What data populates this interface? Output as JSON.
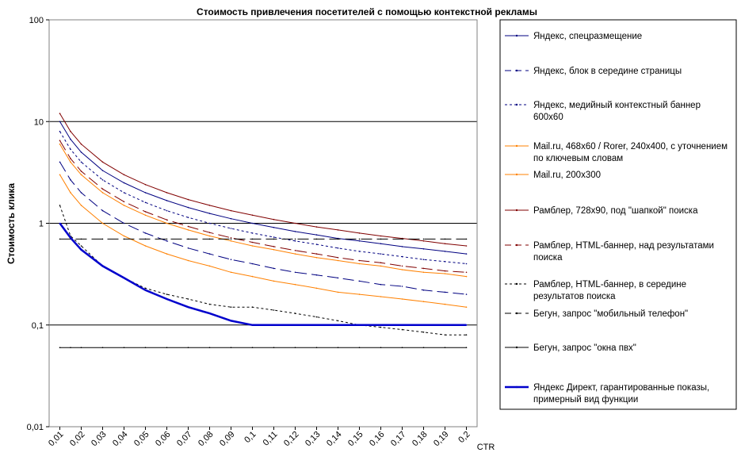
{
  "chart_data": {
    "type": "line",
    "title": "Стоимость привлечения посетителей с помощью контекстной рекламы",
    "xlabel": "CTR",
    "ylabel": "Стоимость клика",
    "y_scale": "log",
    "ylim": [
      0.01,
      100
    ],
    "xlim": [
      0.005,
      0.205
    ],
    "y_ticks": [
      {
        "value": 100,
        "label": "100"
      },
      {
        "value": 10,
        "label": "10"
      },
      {
        "value": 1,
        "label": "1"
      },
      {
        "value": 0.1,
        "label": "0,1"
      },
      {
        "value": 0.01,
        "label": "0,01"
      }
    ],
    "x_ticks": [
      {
        "value": 0.01,
        "label": "0,01"
      },
      {
        "value": 0.02,
        "label": "0,02"
      },
      {
        "value": 0.03,
        "label": "0,03"
      },
      {
        "value": 0.04,
        "label": "0,04"
      },
      {
        "value": 0.05,
        "label": "0,05"
      },
      {
        "value": 0.06,
        "label": "0,06"
      },
      {
        "value": 0.07,
        "label": "0,07"
      },
      {
        "value": 0.08,
        "label": "0,08"
      },
      {
        "value": 0.09,
        "label": "0,09"
      },
      {
        "value": 0.1,
        "label": "0,1"
      },
      {
        "value": 0.11,
        "label": "0,11"
      },
      {
        "value": 0.12,
        "label": "0,12"
      },
      {
        "value": 0.13,
        "label": "0,13"
      },
      {
        "value": 0.14,
        "label": "0,14"
      },
      {
        "value": 0.15,
        "label": "0,15"
      },
      {
        "value": 0.16,
        "label": "0,16"
      },
      {
        "value": 0.17,
        "label": "0,17"
      },
      {
        "value": 0.18,
        "label": "0,18"
      },
      {
        "value": 0.19,
        "label": "0,19"
      },
      {
        "value": 0.2,
        "label": "0,2"
      }
    ],
    "gridlines": "horizontal major",
    "legend_position": "right",
    "x": [
      0.01,
      0.015,
      0.02,
      0.03,
      0.04,
      0.05,
      0.06,
      0.07,
      0.08,
      0.09,
      0.1,
      0.11,
      0.12,
      0.13,
      0.14,
      0.15,
      0.16,
      0.17,
      0.18,
      0.19,
      0.2
    ],
    "series": [
      {
        "name": "Яндекс, спецразмещение",
        "color": "#000080",
        "dash": "solid",
        "width": 1,
        "values": [
          10,
          6.7,
          5,
          3.3,
          2.5,
          2,
          1.67,
          1.43,
          1.25,
          1.11,
          1.0,
          0.91,
          0.83,
          0.77,
          0.71,
          0.67,
          0.63,
          0.59,
          0.56,
          0.53,
          0.5
        ]
      },
      {
        "name": "Яндекс, блок в середине страницы",
        "color": "#000080",
        "dash": "long",
        "width": 1,
        "values": [
          4,
          2.67,
          2,
          1.33,
          1.0,
          0.8,
          0.67,
          0.57,
          0.5,
          0.44,
          0.4,
          0.36,
          0.33,
          0.31,
          0.29,
          0.27,
          0.25,
          0.24,
          0.22,
          0.21,
          0.2
        ]
      },
      {
        "name": "Яндекс, медийный контекстный баннер 600x60",
        "color": "#000080",
        "dash": "short",
        "width": 1,
        "values": [
          8,
          5.33,
          4,
          2.67,
          2.0,
          1.6,
          1.33,
          1.14,
          1.0,
          0.89,
          0.8,
          0.73,
          0.67,
          0.62,
          0.57,
          0.53,
          0.5,
          0.47,
          0.44,
          0.42,
          0.4
        ]
      },
      {
        "name": "Mail.ru, 468x60 / Rorer, 240x400, с уточнением по ключевым словам",
        "color": "#FF8000",
        "dash": "solid",
        "width": 1,
        "values": [
          6,
          4,
          3,
          2,
          1.5,
          1.2,
          1.0,
          0.86,
          0.75,
          0.67,
          0.6,
          0.55,
          0.5,
          0.46,
          0.43,
          0.4,
          0.38,
          0.35,
          0.33,
          0.32,
          0.3
        ]
      },
      {
        "name": "Mail.ru, 200x300",
        "color": "#FF8000",
        "dash": "solid",
        "width": 1,
        "values": [
          3,
          2,
          1.5,
          1.0,
          0.75,
          0.6,
          0.5,
          0.43,
          0.38,
          0.33,
          0.3,
          0.27,
          0.25,
          0.23,
          0.21,
          0.2,
          0.19,
          0.18,
          0.17,
          0.16,
          0.15
        ]
      },
      {
        "name": "Рамблер, 728x90, под \"шапкой\" поиска",
        "color": "#800000",
        "dash": "solid",
        "width": 1,
        "values": [
          12,
          8,
          6,
          4,
          3,
          2.4,
          2.0,
          1.71,
          1.5,
          1.33,
          1.2,
          1.09,
          1.0,
          0.92,
          0.86,
          0.8,
          0.75,
          0.71,
          0.67,
          0.63,
          0.6
        ]
      },
      {
        "name": "Рамблер, HTML-баннер, над результатами поиска",
        "color": "#800000",
        "dash": "long",
        "width": 1,
        "values": [
          6.5,
          4.33,
          3.25,
          2.17,
          1.63,
          1.3,
          1.08,
          0.93,
          0.81,
          0.72,
          0.65,
          0.59,
          0.54,
          0.5,
          0.46,
          0.43,
          0.41,
          0.38,
          0.36,
          0.34,
          0.33
        ]
      },
      {
        "name": "Рамблер, HTML-баннер, в середине результатов поиска",
        "color": "#000000",
        "dash": "short",
        "width": 1,
        "values": [
          1.5,
          0.75,
          0.6,
          0.38,
          0.29,
          0.23,
          0.2,
          0.18,
          0.16,
          0.15,
          0.15,
          0.14,
          0.13,
          0.12,
          0.11,
          0.1,
          0.095,
          0.09,
          0.085,
          0.08,
          0.08
        ]
      },
      {
        "name": "Бегун, запрос \"мобильный телефон\"",
        "color": "#000000",
        "dash": "long",
        "width": 1,
        "values": [
          0.7,
          0.7,
          0.7,
          0.7,
          0.7,
          0.7,
          0.7,
          0.7,
          0.7,
          0.7,
          0.7,
          0.7,
          0.7,
          0.7,
          0.7,
          0.7,
          0.7,
          0.7,
          0.7,
          0.7,
          0.7
        ]
      },
      {
        "name": "Бегун, запрос \"окна пвх\"",
        "color": "#000000",
        "dash": "solid",
        "width": 1,
        "values": [
          0.06,
          0.06,
          0.06,
          0.06,
          0.06,
          0.06,
          0.06,
          0.06,
          0.06,
          0.06,
          0.06,
          0.06,
          0.06,
          0.06,
          0.06,
          0.06,
          0.06,
          0.06,
          0.06,
          0.06,
          0.06
        ]
      },
      {
        "name": "Яндекс Директ, гарантированные показы, примерный вид функции",
        "color": "#0000CC",
        "dash": "solid",
        "width": 2.5,
        "values": [
          1.0,
          0.72,
          0.55,
          0.38,
          0.29,
          0.22,
          0.18,
          0.15,
          0.13,
          0.11,
          0.1,
          0.1,
          0.1,
          0.1,
          0.1,
          0.1,
          0.1,
          0.1,
          0.1,
          0.1,
          0.1
        ]
      }
    ]
  }
}
